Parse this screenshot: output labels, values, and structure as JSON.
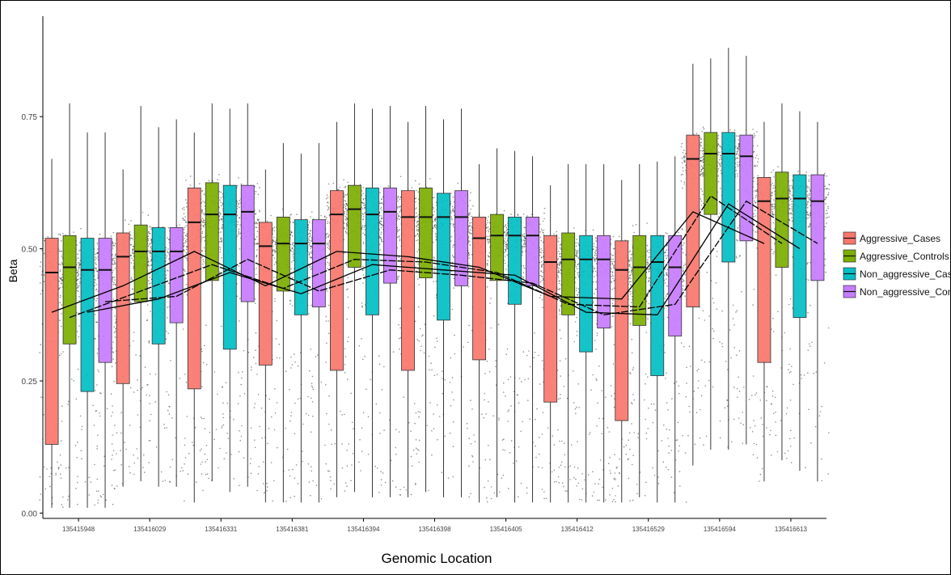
{
  "chart_data": {
    "type": "box",
    "title": "",
    "xlabel": "Genomic Location",
    "ylabel": "Beta",
    "ylim": [
      -0.01,
      0.94
    ],
    "y_ticks": [
      "0.00",
      "0.25",
      "0.50",
      "0.75"
    ],
    "y_tick_values": [
      0,
      0.25,
      0.5,
      0.75
    ],
    "categories": [
      "135415948",
      "135416029",
      "135416331",
      "135416381",
      "135416394",
      "135416398",
      "135416405",
      "135416412",
      "135416529",
      "135416594",
      "135416613"
    ],
    "legend_position": "right",
    "grid": false,
    "series": [
      {
        "name": "Aggressive_Cases",
        "color": "#F8766D",
        "boxes": [
          {
            "q1": 0.13,
            "median": 0.455,
            "q3": 0.52,
            "min": 0.01,
            "max": 0.67
          },
          {
            "q1": 0.245,
            "median": 0.485,
            "q3": 0.53,
            "min": 0.05,
            "max": 0.65
          },
          {
            "q1": 0.235,
            "median": 0.55,
            "q3": 0.615,
            "min": 0.02,
            "max": 0.72
          },
          {
            "q1": 0.28,
            "median": 0.505,
            "q3": 0.55,
            "min": 0.02,
            "max": 0.65
          },
          {
            "q1": 0.27,
            "median": 0.565,
            "q3": 0.61,
            "min": 0.03,
            "max": 0.74
          },
          {
            "q1": 0.27,
            "median": 0.56,
            "q3": 0.61,
            "min": 0.03,
            "max": 0.74
          },
          {
            "q1": 0.29,
            "median": 0.52,
            "q3": 0.56,
            "min": 0.02,
            "max": 0.66
          },
          {
            "q1": 0.21,
            "median": 0.475,
            "q3": 0.525,
            "min": 0.02,
            "max": 0.62
          },
          {
            "q1": 0.175,
            "median": 0.46,
            "q3": 0.515,
            "min": 0.02,
            "max": 0.63
          },
          {
            "q1": 0.39,
            "median": 0.67,
            "q3": 0.715,
            "min": 0.09,
            "max": 0.85
          },
          {
            "q1": 0.285,
            "median": 0.59,
            "q3": 0.635,
            "min": 0.06,
            "max": 0.74
          }
        ]
      },
      {
        "name": "Aggressive_Controls",
        "color": "#7CAE00",
        "boxes": [
          {
            "q1": 0.32,
            "median": 0.465,
            "q3": 0.525,
            "min": 0.01,
            "max": 0.775
          },
          {
            "q1": 0.4,
            "median": 0.495,
            "q3": 0.545,
            "min": 0.06,
            "max": 0.77
          },
          {
            "q1": 0.44,
            "median": 0.565,
            "q3": 0.625,
            "min": 0.06,
            "max": 0.775
          },
          {
            "q1": 0.42,
            "median": 0.51,
            "q3": 0.56,
            "min": 0.02,
            "max": 0.7
          },
          {
            "q1": 0.465,
            "median": 0.575,
            "q3": 0.62,
            "min": 0.04,
            "max": 0.775
          },
          {
            "q1": 0.445,
            "median": 0.56,
            "q3": 0.615,
            "min": 0.04,
            "max": 0.77
          },
          {
            "q1": 0.44,
            "median": 0.525,
            "q3": 0.565,
            "min": 0.03,
            "max": 0.69
          },
          {
            "q1": 0.375,
            "median": 0.48,
            "q3": 0.53,
            "min": 0.02,
            "max": 0.66
          },
          {
            "q1": 0.355,
            "median": 0.465,
            "q3": 0.525,
            "min": 0.03,
            "max": 0.66
          },
          {
            "q1": 0.565,
            "median": 0.68,
            "q3": 0.72,
            "min": 0.12,
            "max": 0.86
          },
          {
            "q1": 0.465,
            "median": 0.595,
            "q3": 0.645,
            "min": 0.1,
            "max": 0.775
          }
        ]
      },
      {
        "name": "Non_aggressive_Cases",
        "color": "#00BFC4",
        "boxes": [
          {
            "q1": 0.23,
            "median": 0.46,
            "q3": 0.52,
            "min": 0.01,
            "max": 0.72
          },
          {
            "q1": 0.32,
            "median": 0.495,
            "q3": 0.54,
            "min": 0.05,
            "max": 0.73
          },
          {
            "q1": 0.31,
            "median": 0.565,
            "q3": 0.62,
            "min": 0.04,
            "max": 0.765
          },
          {
            "q1": 0.375,
            "median": 0.51,
            "q3": 0.555,
            "min": 0.02,
            "max": 0.68
          },
          {
            "q1": 0.375,
            "median": 0.565,
            "q3": 0.615,
            "min": 0.03,
            "max": 0.765
          },
          {
            "q1": 0.365,
            "median": 0.56,
            "q3": 0.605,
            "min": 0.03,
            "max": 0.745
          },
          {
            "q1": 0.395,
            "median": 0.525,
            "q3": 0.56,
            "min": 0.02,
            "max": 0.685
          },
          {
            "q1": 0.305,
            "median": 0.48,
            "q3": 0.525,
            "min": 0.02,
            "max": 0.66
          },
          {
            "q1": 0.26,
            "median": 0.475,
            "q3": 0.525,
            "min": 0.02,
            "max": 0.665
          },
          {
            "q1": 0.475,
            "median": 0.68,
            "q3": 0.72,
            "min": 0.12,
            "max": 0.88
          },
          {
            "q1": 0.37,
            "median": 0.595,
            "q3": 0.64,
            "min": 0.08,
            "max": 0.76
          }
        ]
      },
      {
        "name": "Non_aggressive_Controls",
        "color": "#C77CFF",
        "boxes": [
          {
            "q1": 0.285,
            "median": 0.46,
            "q3": 0.52,
            "min": 0.01,
            "max": 0.72
          },
          {
            "q1": 0.36,
            "median": 0.495,
            "q3": 0.54,
            "min": 0.05,
            "max": 0.745
          },
          {
            "q1": 0.4,
            "median": 0.57,
            "q3": 0.62,
            "min": 0.05,
            "max": 0.775
          },
          {
            "q1": 0.39,
            "median": 0.51,
            "q3": 0.555,
            "min": 0.02,
            "max": 0.7
          },
          {
            "q1": 0.435,
            "median": 0.57,
            "q3": 0.615,
            "min": 0.03,
            "max": 0.77
          },
          {
            "q1": 0.43,
            "median": 0.56,
            "q3": 0.61,
            "min": 0.03,
            "max": 0.765
          },
          {
            "q1": 0.43,
            "median": 0.525,
            "q3": 0.56,
            "min": 0.02,
            "max": 0.675
          },
          {
            "q1": 0.35,
            "median": 0.48,
            "q3": 0.525,
            "min": 0.02,
            "max": 0.66
          },
          {
            "q1": 0.335,
            "median": 0.465,
            "q3": 0.525,
            "min": 0.02,
            "max": 0.675
          },
          {
            "q1": 0.515,
            "median": 0.675,
            "q3": 0.715,
            "min": 0.13,
            "max": 0.865
          },
          {
            "q1": 0.44,
            "median": 0.59,
            "q3": 0.64,
            "min": 0.06,
            "max": 0.74
          }
        ]
      }
    ],
    "trend_lines": [
      {
        "series": "Aggressive_Cases",
        "values": [
          0.38,
          0.43,
          0.495,
          0.43,
          0.495,
          0.485,
          0.465,
          0.41,
          0.405,
          0.57,
          0.51
        ]
      },
      {
        "series": "Aggressive_Controls",
        "values": [
          0.37,
          0.42,
          0.47,
          0.425,
          0.48,
          0.475,
          0.455,
          0.395,
          0.39,
          0.6,
          0.51
        ]
      },
      {
        "series": "Non_aggressive_Cases",
        "values": [
          0.38,
          0.405,
          0.455,
          0.415,
          0.47,
          0.46,
          0.45,
          0.38,
          0.375,
          0.585,
          0.5
        ]
      },
      {
        "series": "Non_aggressive_Controls",
        "values": [
          0.4,
          0.41,
          0.48,
          0.42,
          0.46,
          0.45,
          0.435,
          0.375,
          0.395,
          0.59,
          0.51
        ]
      }
    ]
  }
}
